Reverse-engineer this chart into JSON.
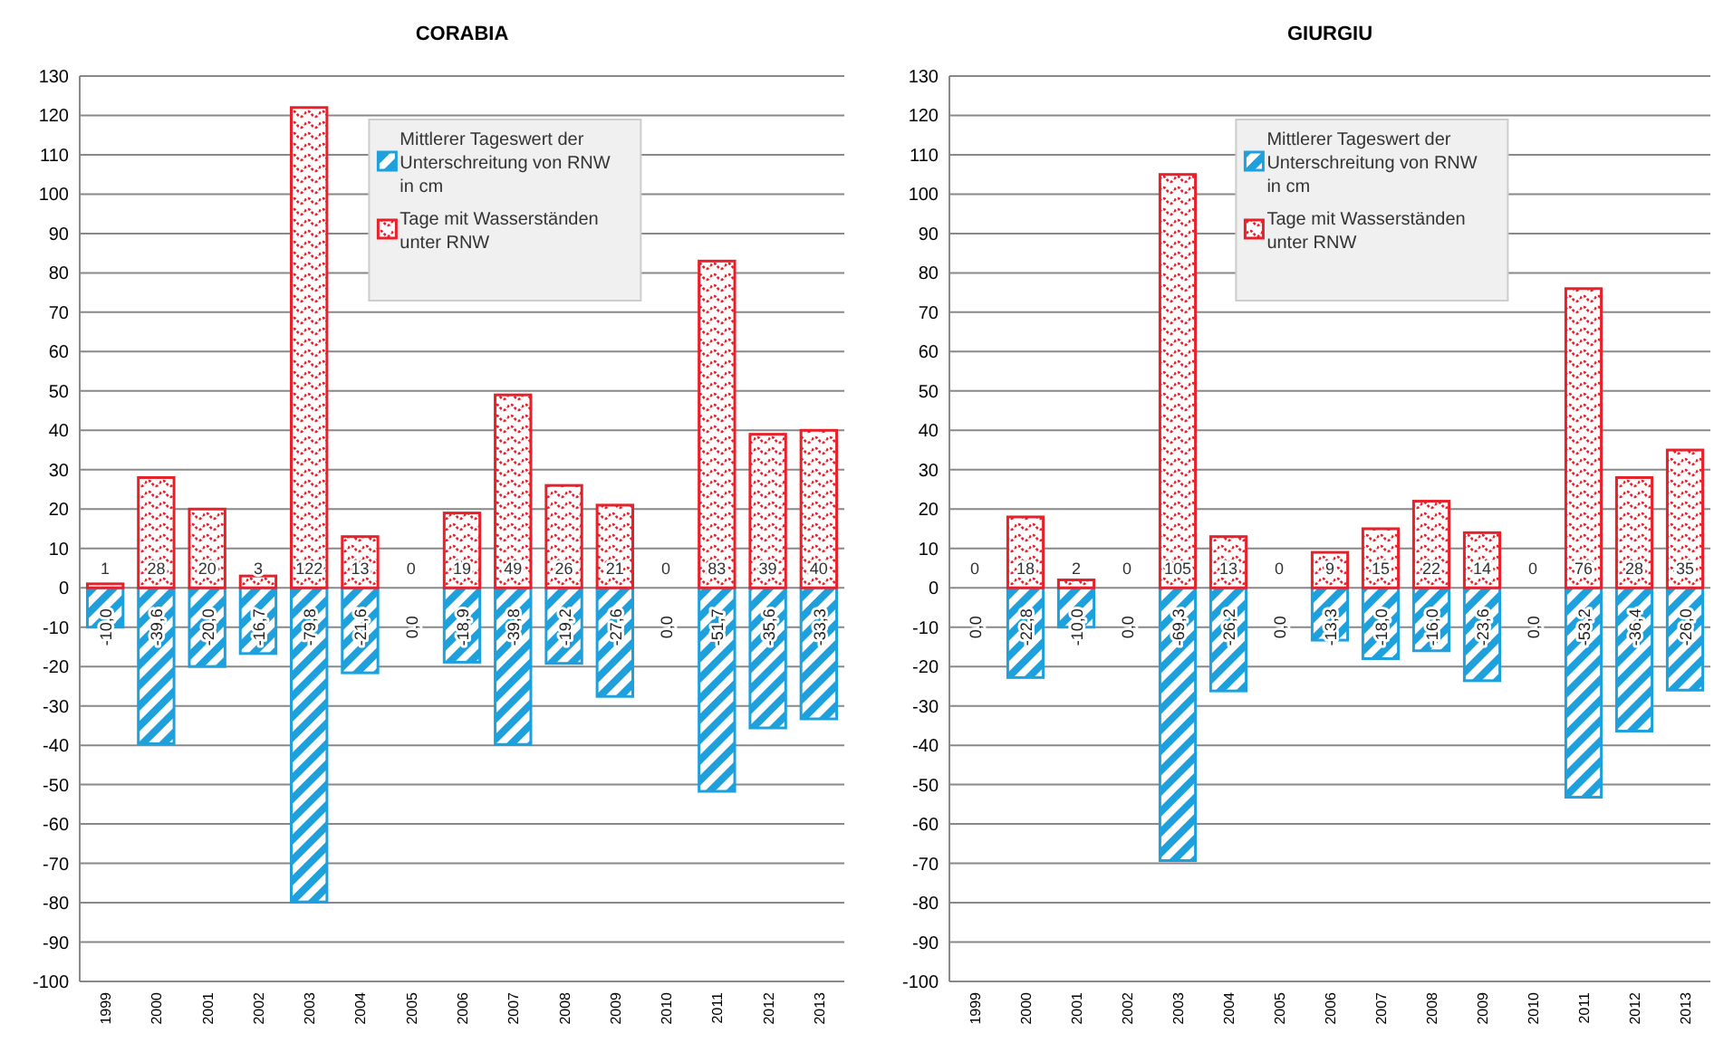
{
  "chart_data": [
    {
      "type": "bar",
      "title": "CORABIA",
      "stacked": true,
      "grid": "y",
      "legend": "top right",
      "categories": [
        "1999",
        "2000",
        "2001",
        "2002",
        "2003",
        "2004",
        "2005",
        "2006",
        "2007",
        "2008",
        "2009",
        "2010",
        "2011",
        "2012",
        "2013"
      ],
      "ylim": [
        -100,
        130
      ],
      "yticks": [
        -100,
        -90,
        -80,
        -70,
        -60,
        -50,
        -40,
        -30,
        -20,
        -10,
        0,
        10,
        20,
        30,
        40,
        50,
        60,
        70,
        80,
        90,
        100,
        110,
        120,
        130
      ],
      "series": [
        {
          "name": "Mittlerer Tageswert der Unterschreitung von RNW in cm",
          "color": "#1ea0dc",
          "values": [
            -10.0,
            -39.6,
            -20.0,
            -16.7,
            -79.8,
            -21.6,
            0.0,
            -18.9,
            -39.8,
            -19.2,
            -27.6,
            0.0,
            -51.7,
            -35.6,
            -33.3
          ],
          "value_labels": [
            "-10,0",
            "-39,6",
            "-20,0",
            "-16,7",
            "-79,8",
            "-21,6",
            "0,0",
            "-18,9",
            "-39,8",
            "-19,2",
            "-27,6",
            "0,0",
            "-51,7",
            "-35,6",
            "-33,3"
          ]
        },
        {
          "name": "Tage mit Wasserständen unter RNW",
          "color": "#e8202a",
          "values": [
            1,
            28,
            20,
            3,
            122,
            13,
            0,
            19,
            49,
            26,
            21,
            0,
            83,
            39,
            40
          ],
          "value_labels": [
            "1",
            "28",
            "20",
            "3",
            "122",
            "13",
            "0",
            "19",
            "49",
            "26",
            "21",
            "0",
            "83",
            "39",
            "40"
          ]
        }
      ]
    },
    {
      "type": "bar",
      "title": "GIURGIU",
      "stacked": true,
      "grid": "y",
      "legend": "top right",
      "categories": [
        "1999",
        "2000",
        "2001",
        "2002",
        "2003",
        "2004",
        "2005",
        "2006",
        "2007",
        "2008",
        "2009",
        "2010",
        "2011",
        "2012",
        "2013"
      ],
      "ylim": [
        -100,
        130
      ],
      "yticks": [
        -100,
        -90,
        -80,
        -70,
        -60,
        -50,
        -40,
        -30,
        -20,
        -10,
        0,
        10,
        20,
        30,
        40,
        50,
        60,
        70,
        80,
        90,
        100,
        110,
        120,
        130
      ],
      "series": [
        {
          "name": "Mittlerer Tageswert der Unterschreitung von RNW in cm",
          "color": "#1ea0dc",
          "values": [
            0.0,
            -22.8,
            -10.0,
            0.0,
            -69.3,
            -26.2,
            0.0,
            -13.3,
            -18.0,
            -16.0,
            -23.6,
            0.0,
            -53.2,
            -36.4,
            -26.0
          ],
          "value_labels": [
            "0,0",
            "-22,8",
            "-10,0",
            "0,0",
            "-69,3",
            "-26,2",
            "0,0",
            "-13,3",
            "-18,0",
            "-16,0",
            "-23,6",
            "0,0",
            "-53,2",
            "-36,4",
            "-26,0"
          ]
        },
        {
          "name": "Tage mit Wasserständen unter RNW",
          "color": "#e8202a",
          "values": [
            0,
            18,
            2,
            0,
            105,
            13,
            0,
            9,
            15,
            22,
            14,
            0,
            76,
            28,
            35
          ],
          "value_labels": [
            "0",
            "18",
            "2",
            "0",
            "105",
            "13",
            "0",
            "9",
            "15",
            "22",
            "14",
            "0",
            "76",
            "28",
            "35"
          ]
        }
      ]
    }
  ]
}
